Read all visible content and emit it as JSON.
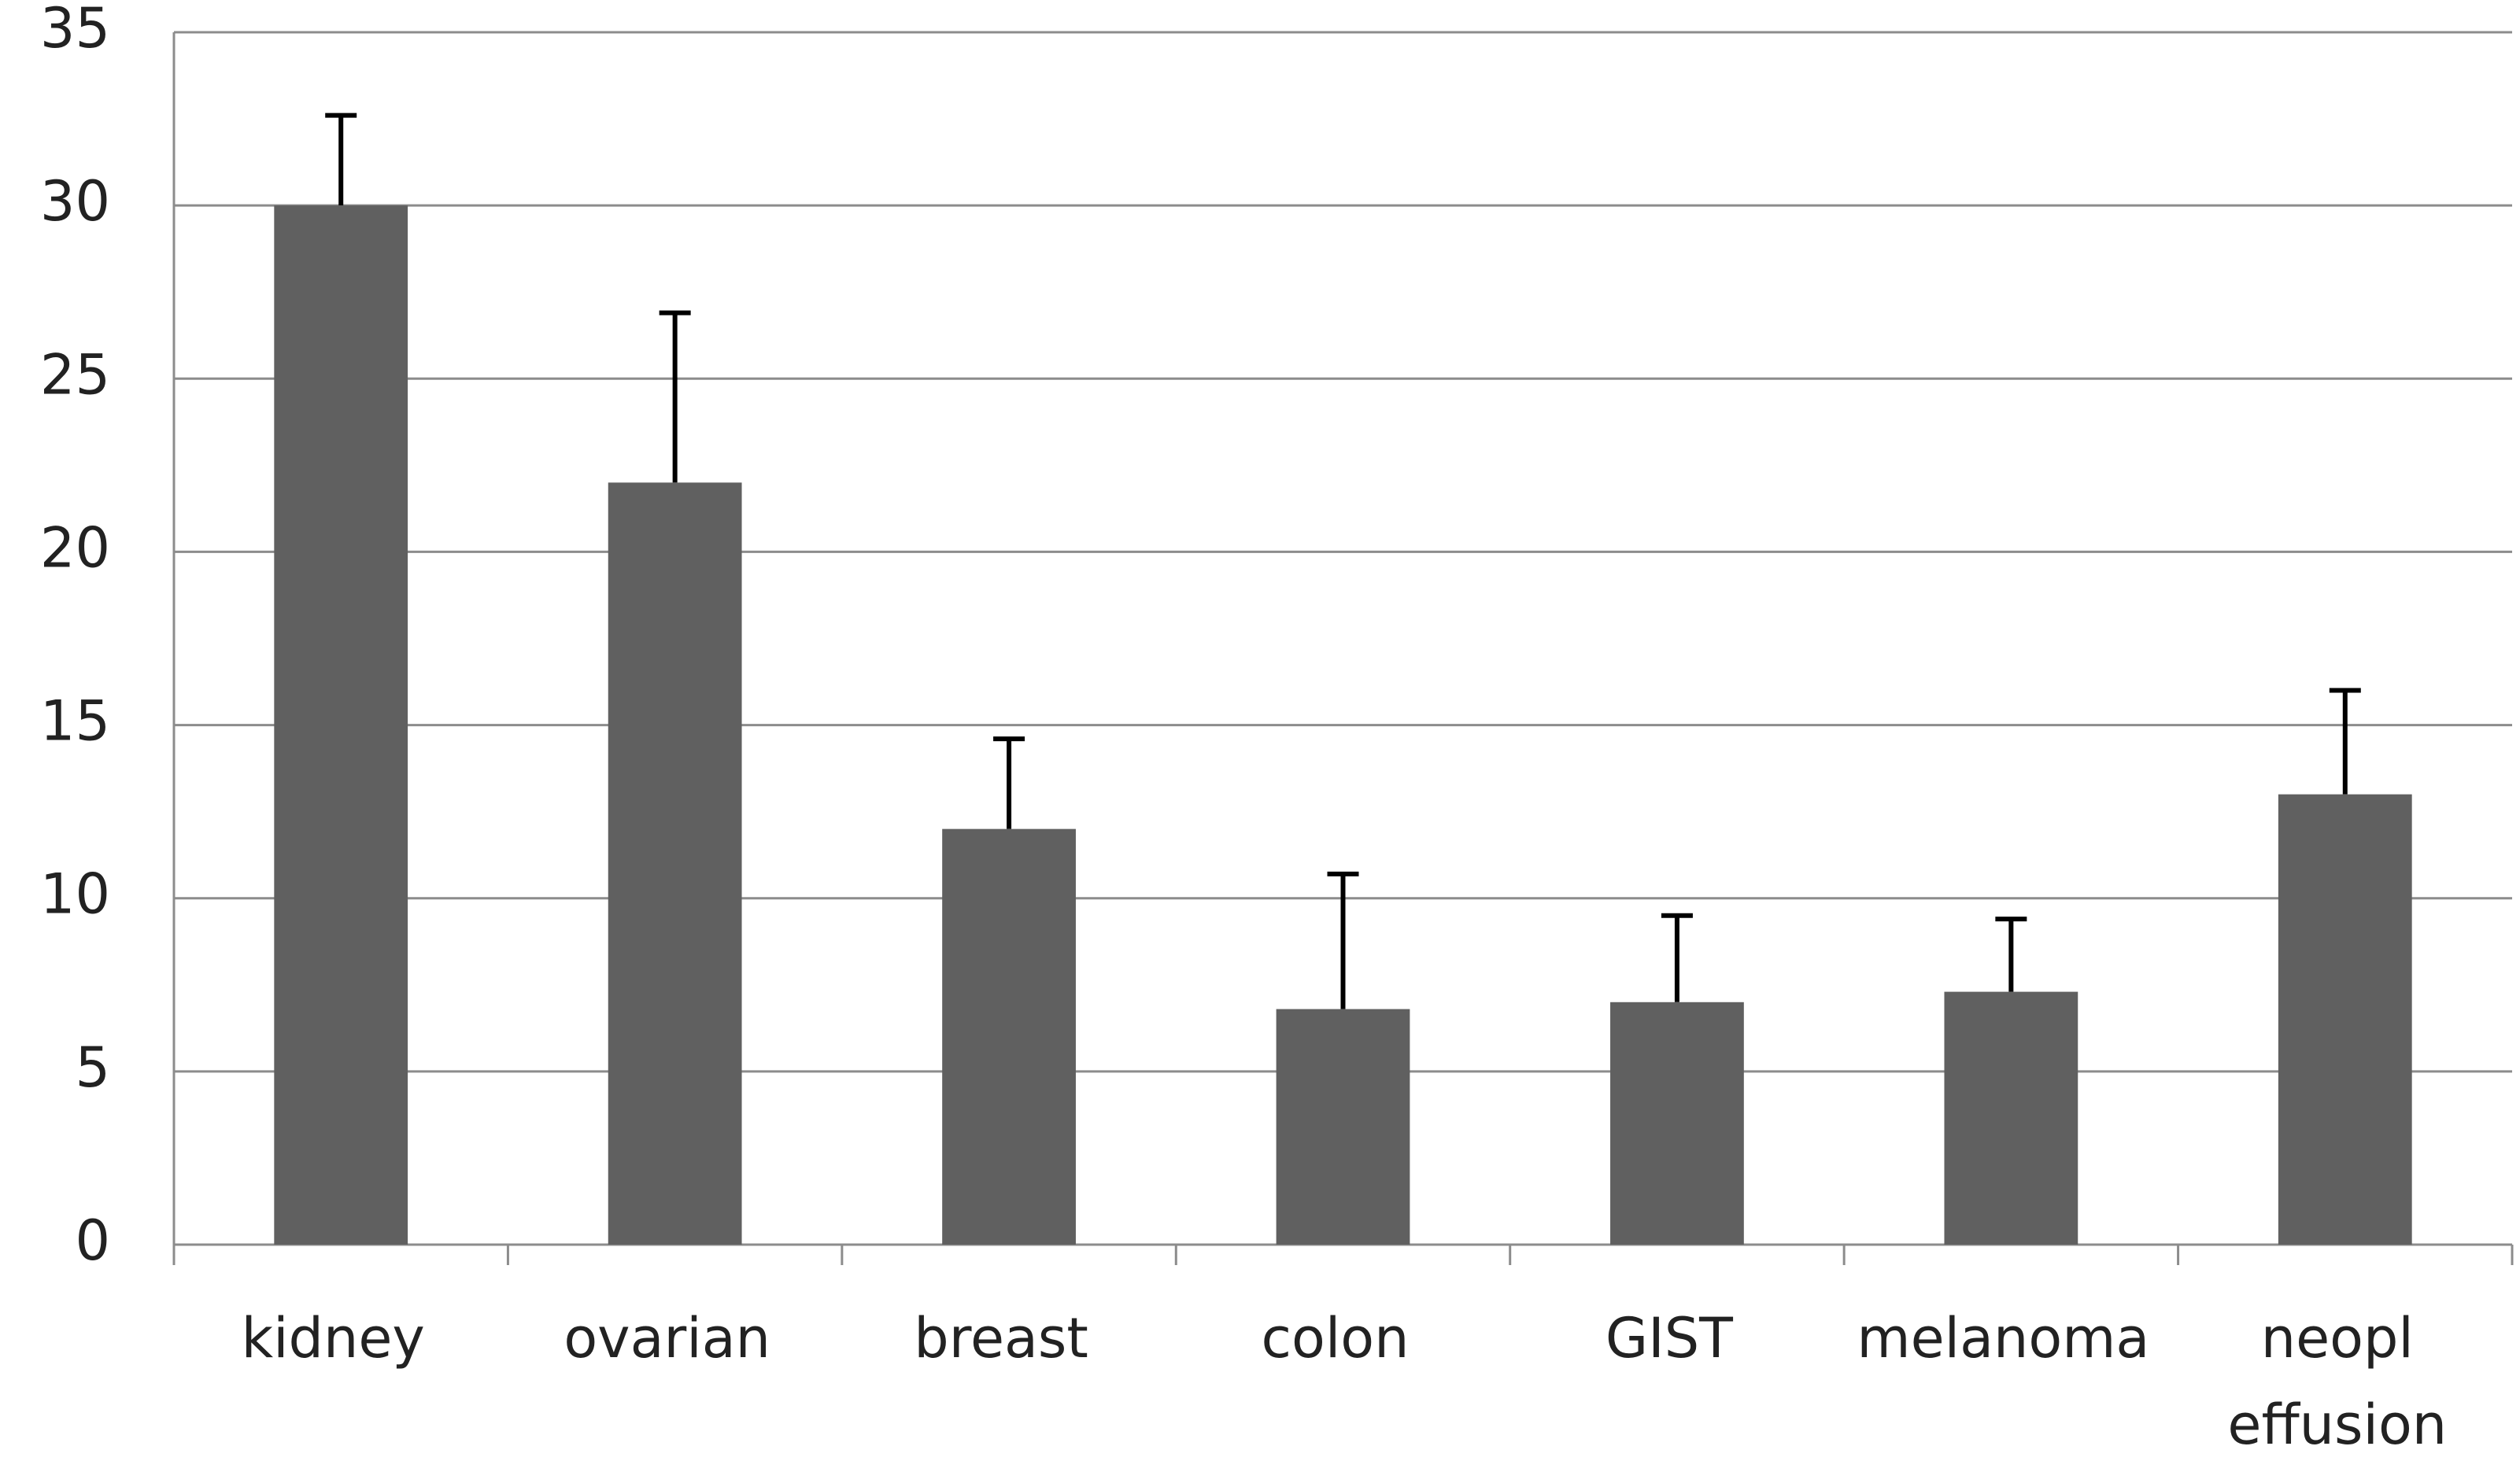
{
  "chart_data": {
    "type": "bar",
    "categories": [
      "kidney",
      "ovarian",
      "breast",
      "colon",
      "GIST",
      "melanoma",
      "neopl effusion"
    ],
    "values": [
      30,
      22,
      12,
      6.8,
      7,
      7.3,
      13
    ],
    "errors": [
      2.6,
      4.9,
      2.6,
      3.9,
      2.5,
      2.1,
      3
    ],
    "color": "#606060",
    "ylim": [
      0,
      35
    ],
    "yticks": [
      0,
      5,
      10,
      15,
      20,
      25,
      30,
      35
    ],
    "grid": true
  }
}
